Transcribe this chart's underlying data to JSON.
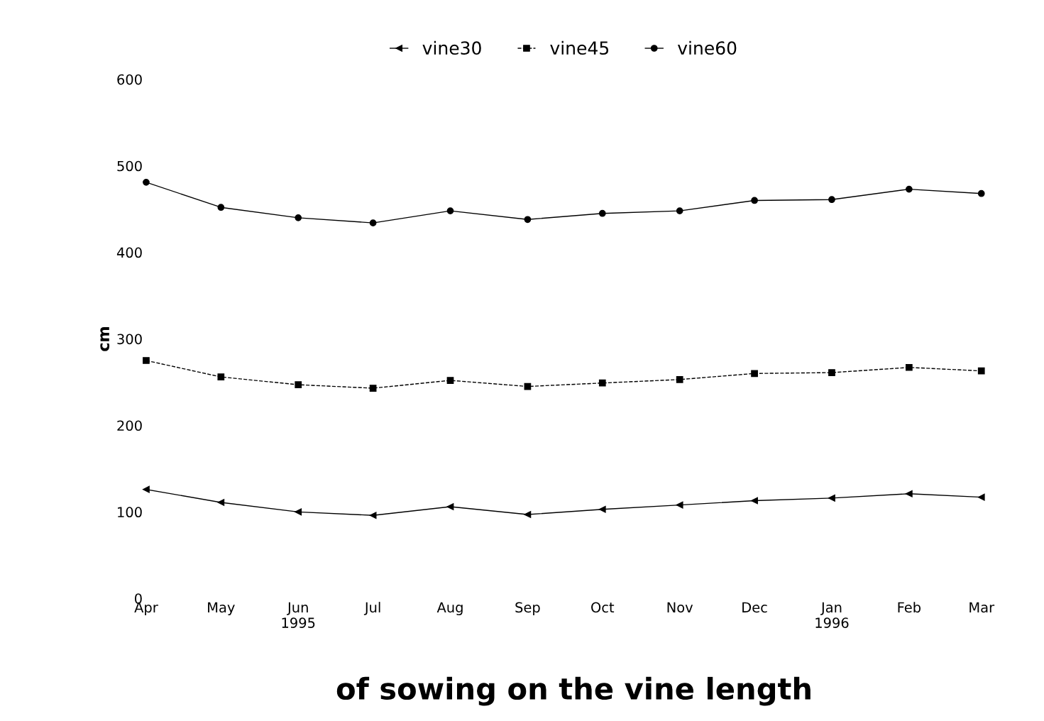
{
  "chart_data": {
    "type": "line",
    "title": "of sowing on the vine length",
    "ylabel": "cm",
    "x": [
      "1995-04",
      "1995-05",
      "1995-06",
      "1995-07",
      "1995-08",
      "1995-09",
      "1995-10",
      "1995-11",
      "1995-12",
      "1996-01",
      "1996-02",
      "1996-03"
    ],
    "series": [
      {
        "name": "vine30",
        "color": "#000000",
        "marker": "triangle",
        "line_style": "solid",
        "values": [
          126,
          111,
          100,
          96,
          106,
          97,
          103,
          108,
          113,
          116,
          121,
          117
        ]
      },
      {
        "name": "vine45",
        "color": "#000000",
        "marker": "square",
        "line_style": "dashed",
        "values": [
          275,
          256,
          247,
          243,
          252,
          245,
          249,
          253,
          260,
          261,
          267,
          263
        ]
      },
      {
        "name": "vine60",
        "color": "#000000",
        "marker": "circle",
        "line_style": "solid",
        "values": [
          481,
          452,
          440,
          434,
          448,
          438,
          445,
          448,
          460,
          461,
          473,
          468
        ]
      }
    ],
    "xlim": [
      "1995-04",
      "1996-03"
    ],
    "xticks": [
      {
        "value": "1995-04",
        "label": "Apr"
      },
      {
        "value": "1995-05",
        "label": "May"
      },
      {
        "value": "1995-06",
        "label": "Jun\n1995"
      },
      {
        "value": "1995-07",
        "label": "Jul"
      },
      {
        "value": "1995-08",
        "label": "Aug"
      },
      {
        "value": "1995-09",
        "label": "Sep"
      },
      {
        "value": "1995-10",
        "label": "Oct"
      },
      {
        "value": "1995-11",
        "label": "Nov"
      },
      {
        "value": "1995-12",
        "label": "Dec"
      },
      {
        "value": "1996-01",
        "label": "Jan\n1996"
      },
      {
        "value": "1996-02",
        "label": "Feb"
      },
      {
        "value": "1996-03",
        "label": "Mar"
      }
    ],
    "ylim": [
      0,
      600
    ],
    "yticks": [
      0,
      100,
      200,
      300,
      400,
      500,
      600
    ],
    "grid": false,
    "legend": "top"
  }
}
